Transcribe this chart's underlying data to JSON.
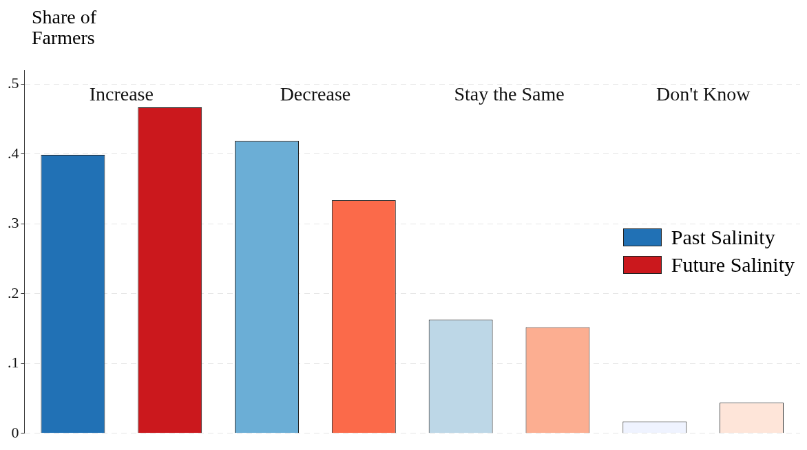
{
  "chart_data": {
    "type": "bar",
    "ylabel": "Share of Farmers",
    "categories": [
      "Increase",
      "Decrease",
      "Stay the Same",
      "Don't Know"
    ],
    "series": [
      {
        "name": "Past Salinity",
        "color": "#2171b5",
        "colors": [
          "#2171b5",
          "#6baed6",
          "#bdd7e7",
          "#eff3ff"
        ],
        "values": [
          0.399,
          0.419,
          0.163,
          0.017
        ]
      },
      {
        "name": "Future Salinity",
        "color": "#cb181d",
        "colors": [
          "#cb181d",
          "#fb6a4a",
          "#fcae91",
          "#fee5d9"
        ],
        "values": [
          0.467,
          0.334,
          0.152,
          0.044
        ]
      }
    ],
    "ylim": [
      0,
      0.52
    ],
    "yticks": [
      {
        "value": 0,
        "label": "0"
      },
      {
        "value": 0.1,
        "label": ".1"
      },
      {
        "value": 0.2,
        "label": ".2"
      },
      {
        "value": 0.3,
        "label": ".3"
      },
      {
        "value": 0.4,
        "label": ".4"
      },
      {
        "value": 0.5,
        "label": ".5"
      }
    ],
    "grid": "y",
    "legend": "right"
  }
}
